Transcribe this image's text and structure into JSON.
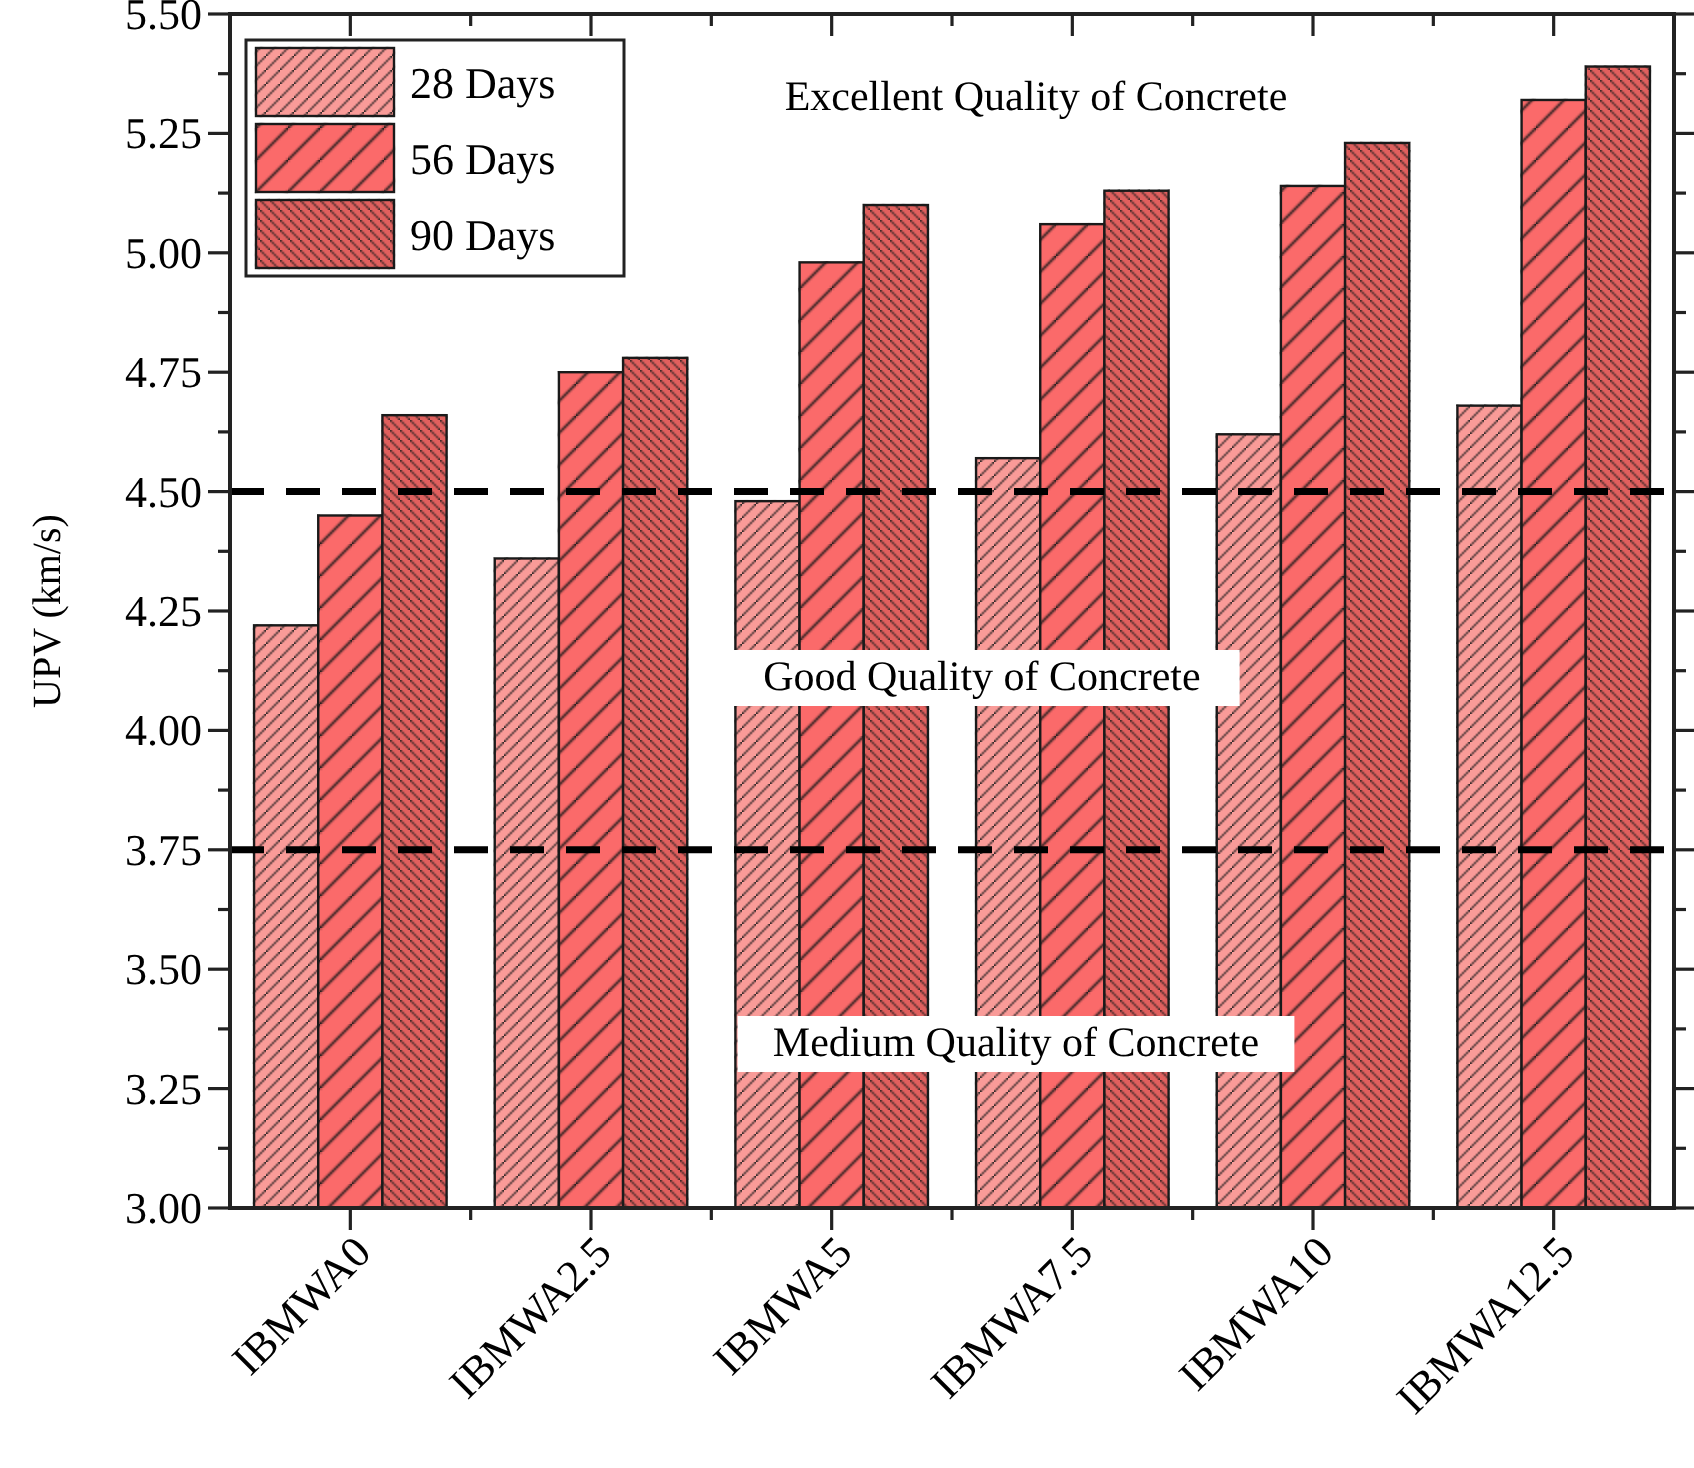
{
  "chart_data": {
    "type": "bar",
    "ylabel": "UPV (km/s)",
    "categories": [
      "IBMWA0",
      "IBMWA2.5",
      "IBMWA5",
      "IBMWA7.5",
      "IBMWA10",
      "IBMWA12.5"
    ],
    "series": [
      {
        "name": "28 Days",
        "color": "#f99b98",
        "values": [
          4.22,
          4.36,
          4.48,
          4.57,
          4.62,
          4.68
        ]
      },
      {
        "name": "56 Days",
        "color": "#fb6a6a",
        "values": [
          4.45,
          4.75,
          4.98,
          5.06,
          5.14,
          5.32
        ]
      },
      {
        "name": "90 Days",
        "color": "#e0605e",
        "values": [
          4.66,
          4.78,
          5.1,
          5.13,
          5.23,
          5.39
        ]
      }
    ],
    "ylim": [
      3,
      5.5
    ],
    "yticks": [
      {
        "value": 3,
        "label": "3.00"
      },
      {
        "value": 3.125,
        "label": null
      },
      {
        "value": 3.25,
        "label": "3.25"
      },
      {
        "value": 3.375,
        "label": null
      },
      {
        "value": 3.5,
        "label": "3.50"
      },
      {
        "value": 3.625,
        "label": null
      },
      {
        "value": 3.75,
        "label": "3.75"
      },
      {
        "value": 3.875,
        "label": null
      },
      {
        "value": 4,
        "label": "4.00"
      },
      {
        "value": 4.125,
        "label": null
      },
      {
        "value": 4.25,
        "label": "4.25"
      },
      {
        "value": 4.375,
        "label": null
      },
      {
        "value": 4.5,
        "label": "4.50"
      },
      {
        "value": 4.625,
        "label": null
      },
      {
        "value": 4.75,
        "label": "4.75"
      },
      {
        "value": 4.875,
        "label": null
      },
      {
        "value": 5,
        "label": "5.00"
      },
      {
        "value": 5.125,
        "label": null
      },
      {
        "value": 5.25,
        "label": "5.25"
      },
      {
        "value": 5.375,
        "label": null
      },
      {
        "value": 5.5,
        "label": "5.50"
      }
    ],
    "legend": "top left",
    "ref_lines": [
      {
        "axis": "y",
        "value": 4.5,
        "color": "#000000",
        "line_style": "dashed"
      },
      {
        "axis": "y",
        "value": 3.75,
        "color": "#000000",
        "line_style": "dashed"
      }
    ],
    "annotations": [
      "Excellent Quality of Concrete",
      "Good Quality of Concrete",
      "Medium Quality of Concrete"
    ]
  }
}
